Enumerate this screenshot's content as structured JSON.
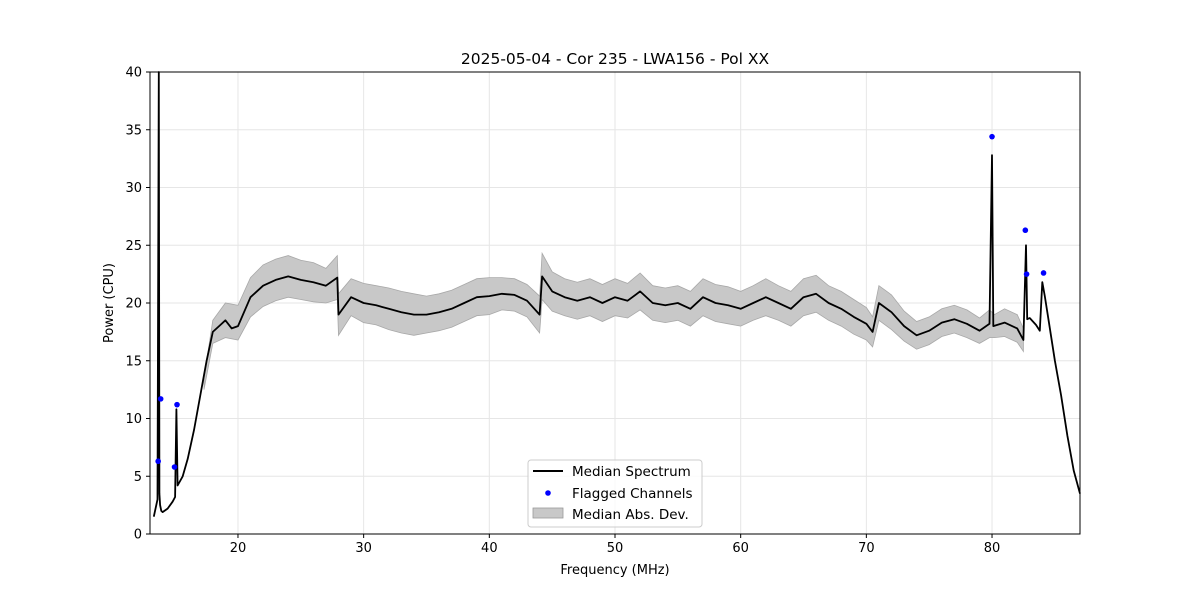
{
  "chart_data": {
    "type": "line",
    "title": "2025-05-04 - Cor 235 - LWA156 - Pol XX",
    "xlabel": "Frequency (MHz)",
    "ylabel": "Power (CPU)",
    "xlim": [
      13,
      87
    ],
    "ylim": [
      0,
      40
    ],
    "xticks": [
      20,
      30,
      40,
      50,
      60,
      70,
      80
    ],
    "yticks": [
      0,
      5,
      10,
      15,
      20,
      25,
      30,
      35,
      40
    ],
    "grid": true,
    "legend_position": "bottom-center",
    "colors": {
      "median": "#000000",
      "flagged": "#0000ff",
      "mad": "#c8c8c8",
      "grid": "#e6e6e6"
    },
    "series": [
      {
        "name": "Median Spectrum",
        "kind": "line",
        "x": [
          13.3,
          13.6,
          13.7,
          13.75,
          13.8,
          13.9,
          14.0,
          14.4,
          14.8,
          15.0,
          15.1,
          15.2,
          15.6,
          16.0,
          16.5,
          17.0,
          17.5,
          18.0,
          18.5,
          19.0,
          19.5,
          20.0,
          21.0,
          22.0,
          23.0,
          24.0,
          25.0,
          26.0,
          27.0,
          27.9,
          28.0,
          29.0,
          30.0,
          31.0,
          32.0,
          33.0,
          34.0,
          35.0,
          36.0,
          37.0,
          38.0,
          39.0,
          40.0,
          41.0,
          42.0,
          43.0,
          44.0,
          44.2,
          45.0,
          46.0,
          47.0,
          48.0,
          49.0,
          50.0,
          51.0,
          52.0,
          53.0,
          54.0,
          55.0,
          56.0,
          57.0,
          58.0,
          59.0,
          60.0,
          61.0,
          62.0,
          63.0,
          64.0,
          65.0,
          66.0,
          67.0,
          68.0,
          69.0,
          70.0,
          70.5,
          71.0,
          72.0,
          73.0,
          74.0,
          75.0,
          76.0,
          77.0,
          78.0,
          79.0,
          79.8,
          80.0,
          80.1,
          81.0,
          82.0,
          82.5,
          82.7,
          82.8,
          83.0,
          83.5,
          83.8,
          84.0,
          84.2,
          84.5,
          85.0,
          85.5,
          86.0,
          86.5,
          87.0
        ],
        "y": [
          1.5,
          3.0,
          40.0,
          3.5,
          2.5,
          2.0,
          1.9,
          2.2,
          2.8,
          3.2,
          10.8,
          4.2,
          5.0,
          6.5,
          9.0,
          12.0,
          15.0,
          17.5,
          18.0,
          18.5,
          17.8,
          18.0,
          20.5,
          21.5,
          22.0,
          22.3,
          22.0,
          21.8,
          21.5,
          22.2,
          19.0,
          20.5,
          20.0,
          19.8,
          19.5,
          19.2,
          19.0,
          19.0,
          19.2,
          19.5,
          20.0,
          20.5,
          20.6,
          20.8,
          20.7,
          20.2,
          19.0,
          22.3,
          21.0,
          20.5,
          20.2,
          20.5,
          20.0,
          20.5,
          20.2,
          21.0,
          20.0,
          19.8,
          20.0,
          19.5,
          20.5,
          20.0,
          19.8,
          19.5,
          20.0,
          20.5,
          20.0,
          19.5,
          20.5,
          20.8,
          20.0,
          19.5,
          18.8,
          18.2,
          17.5,
          20.0,
          19.2,
          18.0,
          17.2,
          17.6,
          18.3,
          18.6,
          18.2,
          17.6,
          18.2,
          32.8,
          18.0,
          18.3,
          17.8,
          16.8,
          25.0,
          18.6,
          18.7,
          18.1,
          17.6,
          21.8,
          20.6,
          18.5,
          15.0,
          12.0,
          8.5,
          5.5,
          3.5
        ]
      },
      {
        "name": "Flagged Channels",
        "kind": "points",
        "x": [
          13.65,
          13.85,
          14.95,
          15.15,
          80.0,
          82.65,
          82.75,
          84.1
        ],
        "y": [
          6.3,
          11.7,
          5.8,
          11.2,
          34.4,
          26.3,
          22.5,
          22.6
        ]
      },
      {
        "name": "Median Abs. Dev.",
        "kind": "band",
        "x": [
          17.3,
          18.0,
          19.0,
          20.0,
          21.0,
          22.0,
          23.0,
          24.0,
          25.0,
          26.0,
          27.0,
          27.9,
          28.0,
          29.0,
          30.0,
          31.0,
          32.0,
          33.0,
          34.0,
          35.0,
          36.0,
          37.0,
          38.0,
          39.0,
          40.0,
          41.0,
          42.0,
          43.0,
          44.0,
          44.2,
          45.0,
          46.0,
          47.0,
          48.0,
          49.0,
          50.0,
          51.0,
          52.0,
          53.0,
          54.0,
          55.0,
          56.0,
          57.0,
          58.0,
          59.0,
          60.0,
          61.0,
          62.0,
          63.0,
          64.0,
          65.0,
          66.0,
          67.0,
          68.0,
          69.0,
          70.0,
          70.5,
          71.0,
          72.0,
          73.0,
          74.0,
          75.0,
          76.0,
          77.0,
          78.0,
          79.0,
          79.8,
          80.2,
          81.0,
          82.0,
          82.5
        ],
        "lower": [
          12.5,
          16.5,
          17.0,
          16.8,
          18.8,
          19.7,
          20.2,
          20.5,
          20.3,
          20.1,
          20.0,
          20.3,
          17.2,
          18.9,
          18.3,
          18.1,
          17.7,
          17.4,
          17.2,
          17.4,
          17.6,
          17.9,
          18.4,
          18.9,
          19.0,
          19.4,
          19.3,
          18.8,
          17.4,
          20.3,
          19.3,
          18.9,
          18.6,
          18.9,
          18.4,
          18.9,
          18.7,
          19.4,
          18.5,
          18.3,
          18.5,
          18.0,
          18.9,
          18.4,
          18.2,
          18.0,
          18.5,
          18.9,
          18.5,
          18.0,
          18.9,
          19.2,
          18.5,
          18.0,
          17.3,
          16.8,
          16.2,
          18.5,
          17.7,
          16.7,
          16.0,
          16.4,
          17.1,
          17.4,
          17.0,
          16.5,
          17.0,
          17.0,
          17.1,
          16.6,
          15.8
        ],
        "upper": [
          13.5,
          18.5,
          20.0,
          19.8,
          22.2,
          23.3,
          23.8,
          24.1,
          23.7,
          23.5,
          23.0,
          24.1,
          20.8,
          22.1,
          21.7,
          21.5,
          21.3,
          21.0,
          20.8,
          20.6,
          20.8,
          21.1,
          21.6,
          22.1,
          22.2,
          22.2,
          22.1,
          21.6,
          20.6,
          24.3,
          22.7,
          22.1,
          21.8,
          22.1,
          21.6,
          22.1,
          21.7,
          22.6,
          21.5,
          21.3,
          21.5,
          21.0,
          22.1,
          21.6,
          21.4,
          21.0,
          21.5,
          22.1,
          21.5,
          21.0,
          22.1,
          22.4,
          21.5,
          21.0,
          20.3,
          19.6,
          18.8,
          21.5,
          20.7,
          19.3,
          18.4,
          18.8,
          19.5,
          19.8,
          19.4,
          18.7,
          19.4,
          19.0,
          19.5,
          19.0,
          17.8
        ]
      }
    ]
  },
  "legend": {
    "median_label": "Median Spectrum",
    "flagged_label": "Flagged Channels",
    "mad_label": "Median Abs. Dev."
  }
}
